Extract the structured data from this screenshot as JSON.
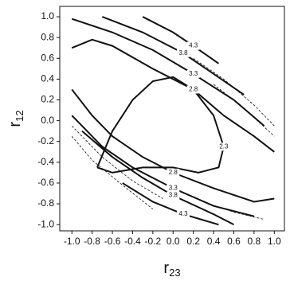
{
  "chart_data": {
    "type": "contour",
    "x_label_base": "r",
    "x_label_sub": "23",
    "y_label_base": "r",
    "y_label_sub": "12",
    "xlim": [
      -1.12,
      1.1
    ],
    "ylim": [
      -1.06,
      1.1
    ],
    "xticks": [
      {
        "value": -1.0,
        "label": "-1.0"
      },
      {
        "value": -0.8,
        "label": "-0.8"
      },
      {
        "value": -0.6,
        "label": "-0.6"
      },
      {
        "value": -0.4,
        "label": "-0.4"
      },
      {
        "value": -0.2,
        "label": "-0.2"
      },
      {
        "value": 0,
        "label": "0.0"
      },
      0.2,
      0.4,
      0.6,
      0.8,
      {
        "value": 1.0,
        "label": "1.0"
      }
    ],
    "yticks": [
      {
        "value": -1.0,
        "label": "-1.0"
      },
      {
        "value": -0.8,
        "label": "-0.8"
      },
      {
        "value": -0.6,
        "label": "-0.6"
      },
      {
        "value": -0.4,
        "label": "-0.4"
      },
      {
        "value": -0.2,
        "label": "-0.2"
      },
      {
        "value": 0,
        "label": "0.0"
      },
      0.2,
      0.4,
      0.6,
      0.8,
      {
        "value": 1.0,
        "label": "1.0"
      }
    ],
    "color": "#111111",
    "contours": [
      {
        "level": 2.3,
        "style": "solid",
        "x": [
          -0.75,
          -0.6,
          -0.4,
          -0.2,
          0.0,
          0.2,
          0.4,
          0.5,
          0.45,
          0.25,
          0.0,
          -0.3,
          -0.6,
          -0.75
        ],
        "y": [
          -0.45,
          -0.1,
          0.2,
          0.38,
          0.42,
          0.3,
          0.05,
          -0.25,
          -0.45,
          -0.5,
          -0.45,
          -0.45,
          -0.5,
          -0.45
        ]
      },
      {
        "level": 2.8,
        "style": "solid",
        "x": [
          -1.0,
          -0.8,
          -0.6,
          -0.2,
          0.2,
          0.5,
          0.8,
          1.0
        ],
        "y": [
          0.7,
          0.78,
          0.72,
          0.5,
          0.3,
          0.05,
          -0.15,
          -0.3
        ]
      },
      {
        "level": 2.8,
        "style": "solid",
        "x": [
          -1.0,
          -0.8,
          -0.6,
          -0.3,
          0.0,
          0.4,
          0.8,
          1.0
        ],
        "y": [
          0.3,
          0.05,
          -0.15,
          -0.35,
          -0.5,
          -0.65,
          -0.78,
          -0.75
        ]
      },
      {
        "level": 3.3,
        "style": "solid",
        "x": [
          -1.0,
          -0.6,
          -0.2,
          0.2,
          0.6,
          0.9
        ],
        "y": [
          0.98,
          0.85,
          0.68,
          0.45,
          0.2,
          -0.05
        ]
      },
      {
        "level": 3.3,
        "style": "solid",
        "x": [
          -1.0,
          -0.7,
          -0.4,
          0.0,
          0.4,
          0.8
        ],
        "y": [
          0.05,
          -0.25,
          -0.45,
          -0.65,
          -0.82,
          -0.92
        ]
      },
      {
        "level": 3.8,
        "style": "solid",
        "x": [
          -0.7,
          -0.3,
          0.1,
          0.4,
          0.7
        ],
        "y": [
          1.0,
          0.85,
          0.65,
          0.45,
          0.25
        ]
      },
      {
        "level": 3.8,
        "style": "solid",
        "x": [
          -0.9,
          -0.6,
          -0.3,
          0.0,
          0.4,
          0.6
        ],
        "y": [
          -0.1,
          -0.35,
          -0.55,
          -0.72,
          -0.9,
          -1.0
        ]
      },
      {
        "level": 4.3,
        "style": "solid",
        "x": [
          -0.3,
          0.0,
          0.2,
          0.45
        ],
        "y": [
          1.0,
          0.85,
          0.72,
          0.55
        ]
      },
      {
        "level": 4.3,
        "style": "solid",
        "x": [
          -0.5,
          -0.2,
          0.1,
          0.45
        ],
        "y": [
          -0.6,
          -0.78,
          -0.9,
          -1.0
        ]
      },
      {
        "style": "dashed",
        "x": [
          0.2,
          0.5,
          0.8,
          1.0
        ],
        "y": [
          0.6,
          0.4,
          0.15,
          -0.05
        ]
      },
      {
        "style": "dashed",
        "x": [
          0.4,
          0.7,
          1.0
        ],
        "y": [
          0.35,
          0.12,
          -0.15
        ]
      },
      {
        "style": "dashed",
        "x": [
          -1.0,
          -0.7,
          -0.4,
          -0.1
        ],
        "y": [
          -0.05,
          -0.35,
          -0.58,
          -0.75
        ]
      },
      {
        "style": "dashed",
        "x": [
          -1.0,
          -0.8,
          -0.5,
          -0.2
        ],
        "y": [
          -0.15,
          -0.38,
          -0.62,
          -0.85
        ]
      },
      {
        "style": "dashed",
        "x": [
          0.3,
          0.6,
          0.9
        ],
        "y": [
          -0.78,
          -0.88,
          -0.95
        ]
      }
    ]
  }
}
